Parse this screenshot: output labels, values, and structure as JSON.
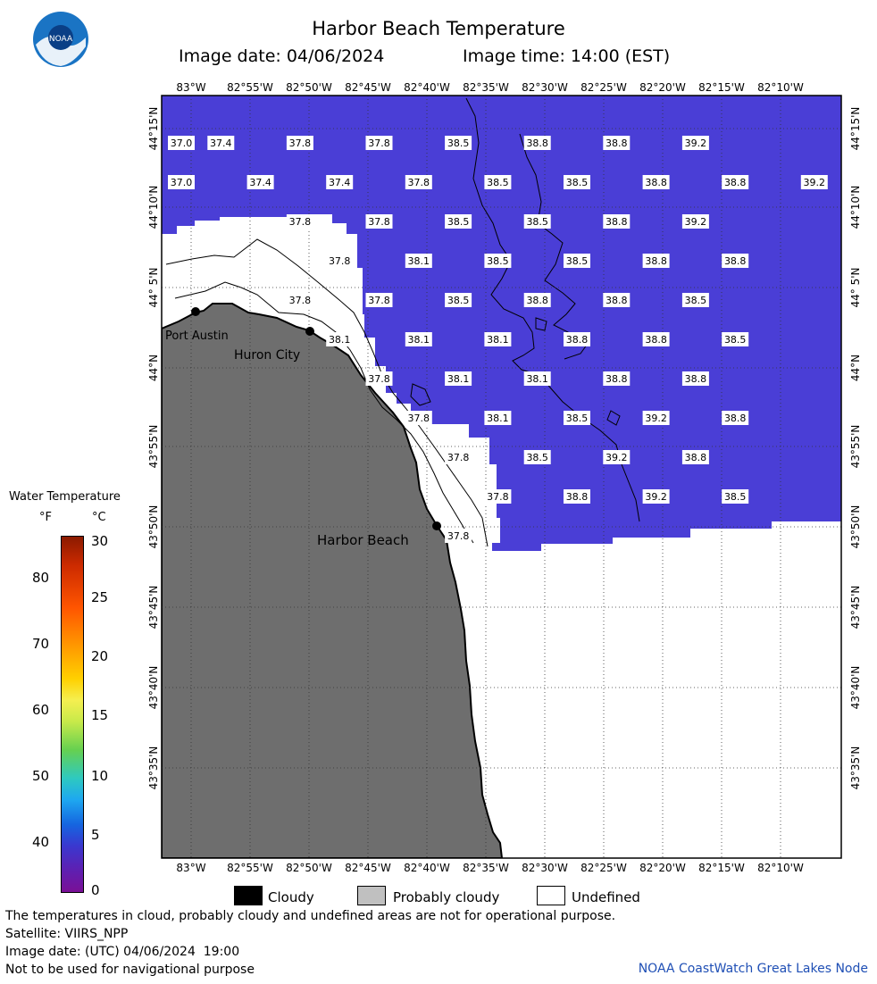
{
  "title": "Harbor Beach Temperature",
  "image_date_label": "Image date: 04/06/2024",
  "image_time_label": "Image time: 14:00 (EST)",
  "logo_text": "NOAA",
  "lon_labels": [
    "83°W",
    "82°55'W",
    "82°50'W",
    "82°45'W",
    "82°40'W",
    "82°35'W",
    "82°30'W",
    "82°25'W",
    "82°20'W",
    "82°15'W",
    "82°10'W"
  ],
  "lat_labels": [
    "44°15'N",
    "44°10'N",
    "44° 5'N",
    "44°N",
    "43°55'N",
    "43°50'N",
    "43°45'N",
    "43°40'N",
    "43°35'N"
  ],
  "places": [
    {
      "name": "Port Austin"
    },
    {
      "name": "Huron City"
    },
    {
      "name": "Harbor Beach"
    }
  ],
  "temperature_grid": [
    [
      "37.0",
      "37.4",
      "",
      "37.8",
      "",
      "37.8",
      "",
      "38.5",
      "",
      "38.8",
      "",
      "38.8",
      "",
      "39.2",
      ""
    ],
    [
      "37.0",
      "",
      "37.4",
      "",
      "37.4",
      "",
      "37.8",
      "",
      "38.5",
      "",
      "38.5",
      "",
      "38.8",
      "",
      "38.8",
      "",
      "39.2"
    ],
    [
      "",
      "",
      "",
      "37.8",
      "",
      "37.8",
      "",
      "38.5",
      "",
      "38.5",
      "",
      "38.8",
      "",
      "39.2",
      ""
    ],
    [
      "",
      "",
      "",
      "",
      "37.8",
      "",
      "38.1",
      "",
      "38.5",
      "",
      "38.5",
      "",
      "38.8",
      "",
      "38.8"
    ],
    [
      "",
      "",
      "",
      "37.8",
      "",
      "37.8",
      "",
      "38.5",
      "",
      "38.8",
      "",
      "38.8",
      "",
      "38.5",
      ""
    ],
    [
      "",
      "",
      "",
      "",
      "38.1",
      "",
      "38.1",
      "",
      "38.1",
      "",
      "38.8",
      "",
      "38.8",
      "",
      "38.5"
    ],
    [
      "",
      "",
      "",
      "",
      "",
      "37.8",
      "",
      "38.1",
      "",
      "38.1",
      "",
      "38.8",
      "",
      "38.8",
      ""
    ],
    [
      "",
      "",
      "",
      "",
      "",
      "",
      "37.8",
      "",
      "38.1",
      "",
      "38.5",
      "",
      "39.2",
      "",
      "38.8"
    ],
    [
      "",
      "",
      "",
      "",
      "",
      "",
      "",
      "37.8",
      "",
      "38.5",
      "",
      "39.2",
      "",
      "38.8",
      ""
    ],
    [
      "",
      "",
      "",
      "",
      "",
      "",
      "",
      "",
      "37.8",
      "",
      "38.8",
      "",
      "39.2",
      "",
      "38.5"
    ],
    [
      "",
      "",
      "",
      "",
      "",
      "",
      "",
      "37.8",
      "",
      "",
      "",
      "",
      "",
      "",
      ""
    ]
  ],
  "legend": {
    "title": "Water Temperature",
    "unit_f": "°F",
    "unit_c": "°C",
    "f_ticks": [
      "80",
      "70",
      "60",
      "50",
      "40"
    ],
    "c_ticks": [
      "30",
      "25",
      "20",
      "15",
      "10",
      "5",
      "0"
    ],
    "categories": [
      {
        "label": "Cloudy",
        "color": "#000000"
      },
      {
        "label": "Probably cloudy",
        "color": "#c0c0c0"
      },
      {
        "label": "Undefined",
        "color": "#ffffff"
      }
    ]
  },
  "colors": {
    "water": "#4a3ed6",
    "land": "#6e6e6e",
    "cloud": "#ffffff"
  },
  "footer": {
    "note": "The temperatures in cloud, probably cloudy and undefined areas are not for operational purpose.",
    "satellite": "Satellite: VIIRS_NPP",
    "utc_date": "Image date: (UTC) 04/06/2024  19:00",
    "nav_warning": "Not to be used for navigational purpose",
    "credit": "NOAA CoastWatch Great Lakes Node"
  }
}
